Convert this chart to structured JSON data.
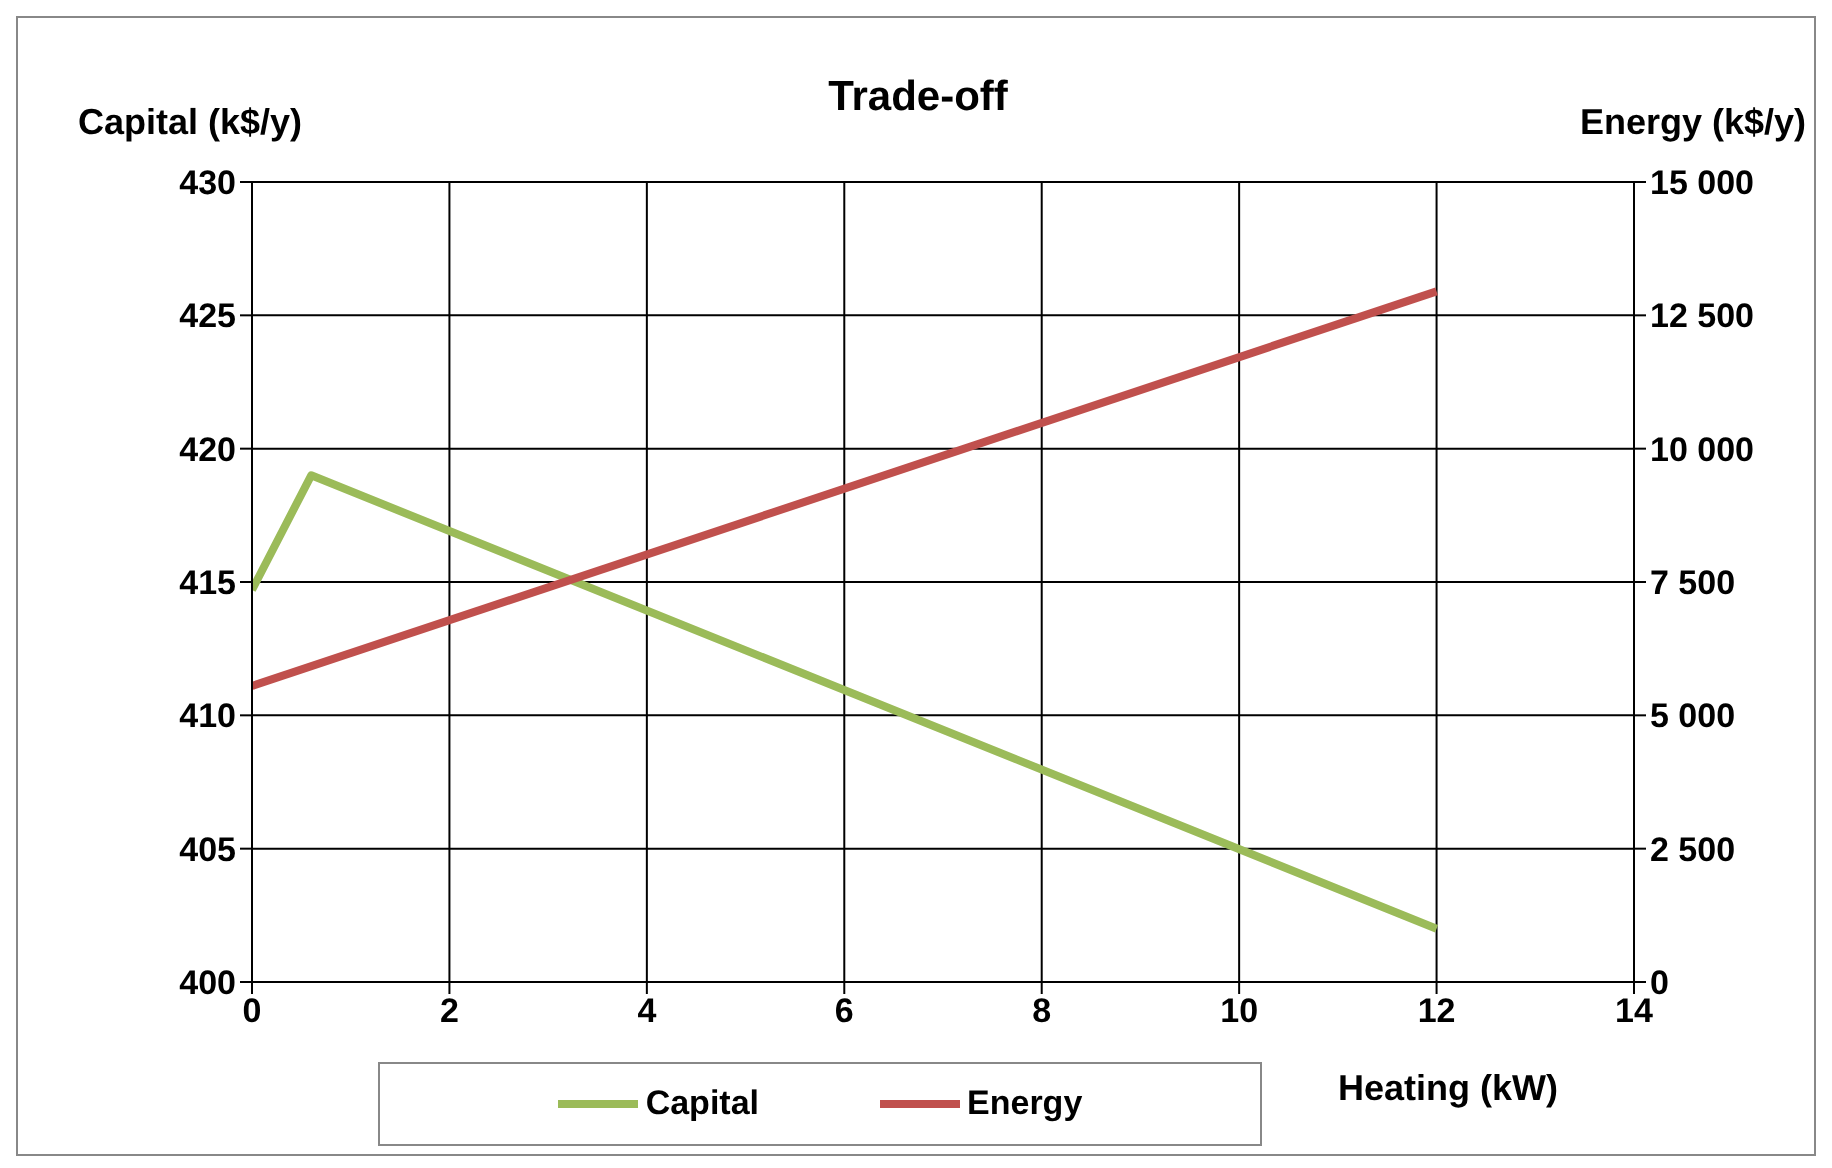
{
  "chart_data": {
    "type": "line",
    "title": "Trade-off",
    "xlabel": "Heating (kW)",
    "ylabel": "Capital (k$/y)",
    "y2label": "Energy (k$/y)",
    "series": [
      {
        "name": "Capital",
        "color": "#9bbb59",
        "x": [
          0,
          0.6,
          12
        ],
        "values": [
          414.7,
          419,
          402
        ]
      },
      {
        "name": "Energy",
        "color": "#c0504d",
        "axis": "y2",
        "x": [
          0,
          12
        ],
        "values": [
          5550,
          12950
        ]
      }
    ],
    "xlim": [
      0,
      14
    ],
    "xticks": [
      0,
      2,
      4,
      6,
      8,
      10,
      12,
      14
    ],
    "ylim": [
      400,
      430
    ],
    "yticks": [
      400,
      405,
      410,
      415,
      420,
      425,
      430
    ],
    "y2lim": [
      0,
      15000
    ],
    "y2ticks": [
      {
        "value": 0,
        "label": "0"
      },
      {
        "value": 2500,
        "label": "2 500"
      },
      {
        "value": 5000,
        "label": "5 000"
      },
      {
        "value": 7500,
        "label": "7 500"
      },
      {
        "value": 10000,
        "label": "10 000"
      },
      {
        "value": 12500,
        "label": "12 500"
      },
      {
        "value": 15000,
        "label": "15 000"
      }
    ],
    "grid": true,
    "legend": "bottom",
    "marker": "none",
    "line_style": "solid"
  }
}
